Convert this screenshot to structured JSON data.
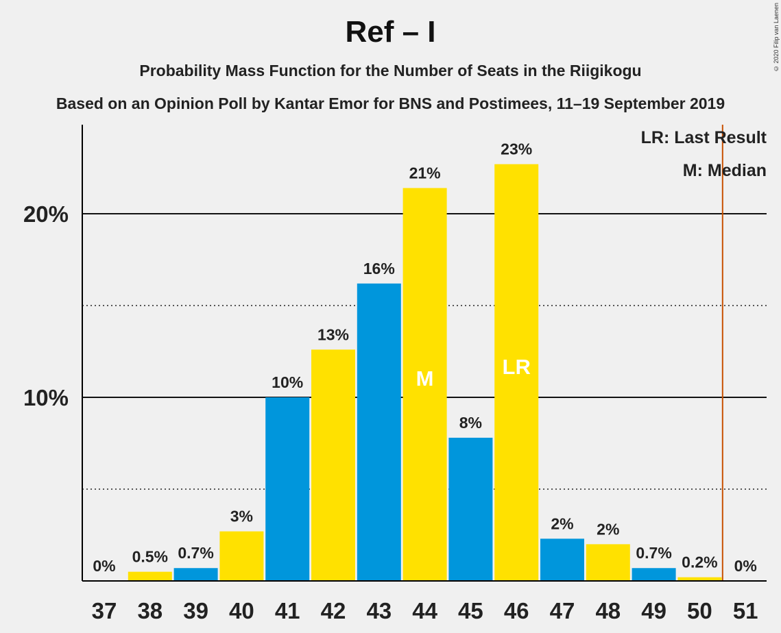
{
  "header": {
    "title": "Ref – I",
    "subtitle": "Probability Mass Function for the Number of Seats in the Riigikogu",
    "subtitle2": "Based on an Opinion Poll by Kantar Emor for BNS and Postimees, 11–19 September 2019",
    "copyright": "© 2020 Filip van Laenen"
  },
  "legend": {
    "lr": "LR: Last Result",
    "m": "M: Median"
  },
  "colors": {
    "blue": "#0096dc",
    "yellow": "#ffe100",
    "last_result_line": "#c85000",
    "axis": "#000000"
  },
  "chart_data": {
    "type": "bar",
    "categories": [
      "37",
      "38",
      "39",
      "40",
      "41",
      "42",
      "43",
      "44",
      "45",
      "46",
      "47",
      "48",
      "49",
      "50",
      "51"
    ],
    "values": [
      0,
      0.5,
      0.7,
      2.7,
      10.0,
      12.6,
      16.2,
      21.4,
      7.8,
      22.7,
      2.3,
      2.0,
      0.7,
      0.2,
      0
    ],
    "labels": [
      "0%",
      "0.5%",
      "0.7%",
      "3%",
      "10%",
      "13%",
      "16%",
      "21%",
      "8%",
      "23%",
      "2%",
      "2%",
      "0.7%",
      "0.2%",
      "0%"
    ],
    "bar_colors": [
      "yellow",
      "yellow",
      "blue",
      "yellow",
      "blue",
      "yellow",
      "blue",
      "yellow",
      "blue",
      "yellow",
      "blue",
      "yellow",
      "blue",
      "yellow",
      "blue"
    ],
    "ylim": [
      0,
      25
    ],
    "yticks": [
      {
        "value": 10,
        "label": "10%"
      },
      {
        "value": 20,
        "label": "20%"
      }
    ],
    "dotted_gridlines": [
      5,
      15
    ],
    "median_category": "44",
    "median_label": "M",
    "last_result_category": "46",
    "last_result_label": "LR",
    "last_result_line_after": "50"
  }
}
